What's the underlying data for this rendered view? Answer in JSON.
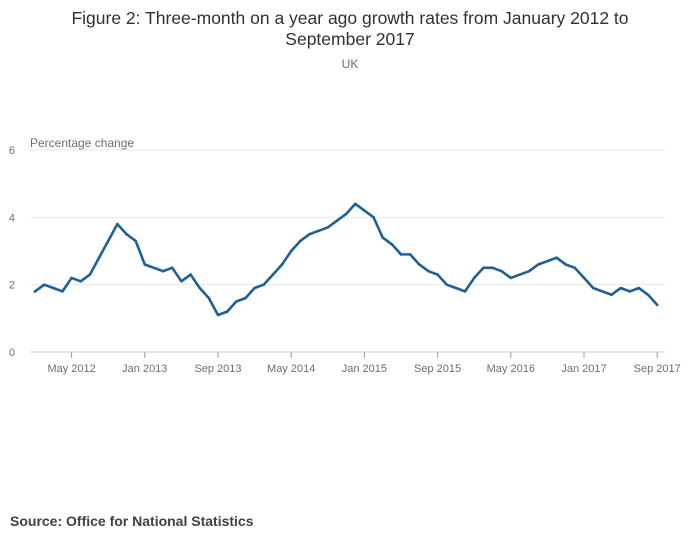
{
  "source_label": "Source: Office for National Statistics",
  "chart_data": {
    "type": "line",
    "title": "Figure 2: Three-month on a year ago growth rates from January 2012 to September 2017",
    "subtitle": "UK",
    "ylabel": "Percentage change",
    "xlabel": "",
    "ylim": [
      0,
      6
    ],
    "yticks": [
      0,
      2,
      4,
      6
    ],
    "grid": true,
    "line_color": "#206095",
    "xtick_labels": [
      {
        "label": "May 2012",
        "index": 4
      },
      {
        "label": "Jan 2013",
        "index": 12
      },
      {
        "label": "Sep 2013",
        "index": 20
      },
      {
        "label": "May 2014",
        "index": 28
      },
      {
        "label": "Jan 2015",
        "index": 36
      },
      {
        "label": "Sep 2015",
        "index": 44
      },
      {
        "label": "May 2016",
        "index": 52
      },
      {
        "label": "Jan 2017",
        "index": 60
      },
      {
        "label": "Sep 2017",
        "index": 68
      }
    ],
    "series": [
      {
        "name": "Three-month on a year ago growth rate",
        "x": [
          "Jan 2012",
          "Feb 2012",
          "Mar 2012",
          "Apr 2012",
          "May 2012",
          "Jun 2012",
          "Jul 2012",
          "Aug 2012",
          "Sep 2012",
          "Oct 2012",
          "Nov 2012",
          "Dec 2012",
          "Jan 2013",
          "Feb 2013",
          "Mar 2013",
          "Apr 2013",
          "May 2013",
          "Jun 2013",
          "Jul 2013",
          "Aug 2013",
          "Sep 2013",
          "Oct 2013",
          "Nov 2013",
          "Dec 2013",
          "Jan 2014",
          "Feb 2014",
          "Mar 2014",
          "Apr 2014",
          "May 2014",
          "Jun 2014",
          "Jul 2014",
          "Aug 2014",
          "Sep 2014",
          "Oct 2014",
          "Nov 2014",
          "Dec 2014",
          "Jan 2015",
          "Feb 2015",
          "Mar 2015",
          "Apr 2015",
          "May 2015",
          "Jun 2015",
          "Jul 2015",
          "Aug 2015",
          "Sep 2015",
          "Oct 2015",
          "Nov 2015",
          "Dec 2015",
          "Jan 2016",
          "Feb 2016",
          "Mar 2016",
          "Apr 2016",
          "May 2016",
          "Jun 2016",
          "Jul 2016",
          "Aug 2016",
          "Sep 2016",
          "Oct 2016",
          "Nov 2016",
          "Dec 2016",
          "Jan 2017",
          "Feb 2017",
          "Mar 2017",
          "Apr 2017",
          "May 2017",
          "Jun 2017",
          "Jul 2017",
          "Aug 2017",
          "Sep 2017"
        ],
        "values": [
          1.8,
          2.0,
          1.9,
          1.8,
          2.2,
          2.1,
          2.3,
          2.8,
          3.3,
          3.8,
          3.5,
          3.3,
          2.6,
          2.5,
          2.4,
          2.5,
          2.1,
          2.3,
          1.9,
          1.6,
          1.1,
          1.2,
          1.5,
          1.6,
          1.9,
          2.0,
          2.3,
          2.6,
          3.0,
          3.3,
          3.5,
          3.6,
          3.7,
          3.9,
          4.1,
          4.4,
          4.2,
          4.0,
          3.4,
          3.2,
          2.9,
          2.9,
          2.6,
          2.4,
          2.3,
          2.0,
          1.9,
          1.8,
          2.2,
          2.5,
          2.5,
          2.4,
          2.2,
          2.3,
          2.4,
          2.6,
          2.7,
          2.8,
          2.6,
          2.5,
          2.2,
          1.9,
          1.8,
          1.7,
          1.9,
          1.8,
          1.9,
          1.7,
          1.4
        ]
      }
    ]
  }
}
